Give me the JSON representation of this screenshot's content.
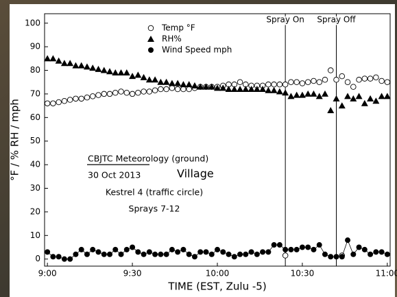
{
  "chart_data": {
    "type": "scatter",
    "ylabel": "°F / % RH / mph",
    "xlabel": "TIME (EST, Zulu -5)",
    "xlim": [
      539,
      661
    ],
    "ylim": [
      -3,
      104
    ],
    "yticks": [
      0,
      10,
      20,
      30,
      40,
      50,
      60,
      70,
      80,
      90,
      100
    ],
    "xticks": [
      {
        "value": 540,
        "label": "9:00"
      },
      {
        "value": 570,
        "label": "9:30"
      },
      {
        "value": 600,
        "label": "10:00"
      },
      {
        "value": 630,
        "label": "10:30"
      },
      {
        "value": 660,
        "label": "11:00"
      }
    ],
    "grid": false,
    "legend_position": "top",
    "x": [
      540,
      542,
      544,
      546,
      548,
      550,
      552,
      554,
      556,
      558,
      560,
      562,
      564,
      566,
      568,
      570,
      572,
      574,
      576,
      578,
      580,
      582,
      584,
      586,
      588,
      590,
      592,
      594,
      596,
      598,
      600,
      602,
      604,
      606,
      608,
      610,
      612,
      614,
      616,
      618,
      620,
      622,
      624,
      626,
      628,
      630,
      632,
      634,
      636,
      638,
      640,
      642,
      644,
      646,
      648,
      650,
      652,
      654,
      656,
      658,
      660
    ],
    "series": [
      {
        "name": "Temp °F",
        "color": "#000000",
        "marker": "circle-open",
        "connect": false,
        "x": [
          540,
          542,
          544,
          546,
          548,
          550,
          552,
          554,
          556,
          558,
          560,
          562,
          564,
          566,
          568,
          570,
          572,
          574,
          576,
          578,
          580,
          582,
          584,
          586,
          588,
          590,
          592,
          594,
          596,
          598,
          600,
          602,
          604,
          606,
          608,
          610,
          612,
          614,
          616,
          618,
          620,
          622,
          624,
          624,
          626,
          628,
          630,
          632,
          634,
          636,
          638,
          640,
          642,
          644,
          644,
          646,
          648,
          650,
          652,
          654,
          656,
          658,
          660
        ],
        "values": [
          66,
          66,
          66.5,
          67,
          67.5,
          68,
          68,
          68.5,
          69,
          69.5,
          70,
          70,
          70.5,
          71,
          70.5,
          70,
          70.5,
          71,
          71,
          71.5,
          72,
          72,
          72.5,
          72,
          72,
          72,
          72.5,
          73,
          73,
          73,
          73,
          73.5,
          74,
          74,
          75,
          74,
          73.5,
          73.5,
          73.5,
          74,
          74,
          74,
          74,
          1.5,
          75,
          75,
          74.5,
          75,
          75.5,
          75,
          76,
          80,
          76,
          77.5,
          1.5,
          75,
          73,
          76,
          76.5,
          76.5,
          77,
          75.5,
          75
        ]
      },
      {
        "name": "RH%",
        "color": "#000000",
        "marker": "triangle",
        "connect": false,
        "values": [
          85,
          85,
          84,
          83,
          83,
          82,
          82,
          81.5,
          81,
          80.5,
          80,
          79.5,
          79,
          79,
          79,
          77.5,
          78,
          77,
          76,
          76,
          75,
          75,
          74.5,
          74.5,
          74,
          74,
          73.5,
          73,
          73,
          73,
          72.5,
          72.5,
          72,
          72,
          72,
          72,
          72,
          72,
          72,
          71.5,
          71.5,
          71,
          70.5,
          69,
          69.5,
          69.5,
          70,
          70,
          69,
          70,
          63,
          68,
          65,
          69,
          68,
          69,
          66,
          68,
          67,
          69,
          69
        ]
      },
      {
        "name": "Wind Speed mph",
        "color": "#000000",
        "marker": "circle",
        "connect": true,
        "values": [
          3,
          1,
          1,
          0,
          0,
          2,
          4,
          2,
          4,
          3,
          2,
          2,
          4,
          2,
          4,
          5,
          3,
          2,
          3,
          2,
          2,
          2,
          4,
          3,
          4,
          2,
          1,
          3,
          3,
          2,
          4,
          3,
          2,
          1,
          2,
          2,
          3,
          2,
          3,
          3,
          6,
          6,
          4,
          4,
          4,
          5,
          5,
          4,
          6,
          2,
          1,
          1,
          1,
          8,
          2,
          5,
          4,
          2,
          3,
          3,
          2
        ]
      }
    ],
    "vlines": [
      {
        "x": 624,
        "label": "Spray On"
      },
      {
        "x": 642,
        "label": "Spray Off"
      }
    ],
    "notes": {
      "heading": "CBJTC Meteorology (ground)",
      "date": "30 Oct 2013",
      "site": "Village",
      "instrument": "Kestrel 4 (traffic circle)",
      "sprays": "Sprays 7-12"
    }
  }
}
